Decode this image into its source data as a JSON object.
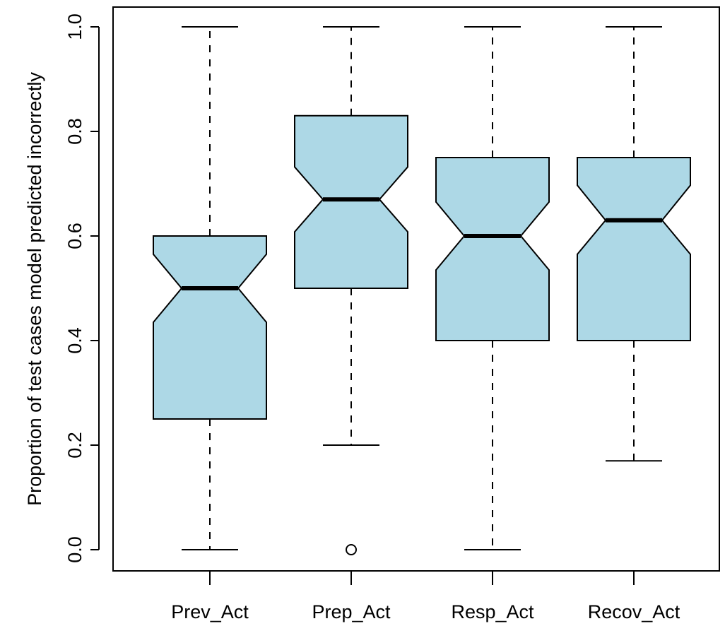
{
  "chart_data": {
    "type": "boxplot",
    "notched": true,
    "title": "",
    "xlabel": "",
    "ylabel": "Proportion of test cases model predicted incorrectly",
    "ylim": [
      0.0,
      1.0
    ],
    "y_ticks": [
      "0.0",
      "0.2",
      "0.4",
      "0.6",
      "0.8",
      "1.0"
    ],
    "grid": false,
    "colors": {
      "box_fill": "#add8e6",
      "box_stroke": "#000000",
      "median": "#000000"
    },
    "categories": [
      "Prev_Act",
      "Prep_Act",
      "Resp_Act",
      "Recov_Act"
    ],
    "boxes": [
      {
        "label": "Prev_Act",
        "whisker_low": 0.0,
        "q1": 0.25,
        "median": 0.5,
        "q3": 0.6,
        "whisker_high": 1.0,
        "notch_low": 0.435,
        "notch_high": 0.565,
        "outliers": []
      },
      {
        "label": "Prep_Act",
        "whisker_low": 0.2,
        "q1": 0.5,
        "median": 0.67,
        "q3": 0.83,
        "whisker_high": 1.0,
        "notch_low": 0.608,
        "notch_high": 0.732,
        "outliers": [
          0.0
        ]
      },
      {
        "label": "Resp_Act",
        "whisker_low": 0.0,
        "q1": 0.4,
        "median": 0.6,
        "q3": 0.75,
        "whisker_high": 1.0,
        "notch_low": 0.535,
        "notch_high": 0.665,
        "outliers": []
      },
      {
        "label": "Recov_Act",
        "whisker_low": 0.17,
        "q1": 0.4,
        "median": 0.63,
        "q3": 0.75,
        "whisker_high": 1.0,
        "notch_low": 0.565,
        "notch_high": 0.697,
        "outliers": []
      }
    ]
  }
}
